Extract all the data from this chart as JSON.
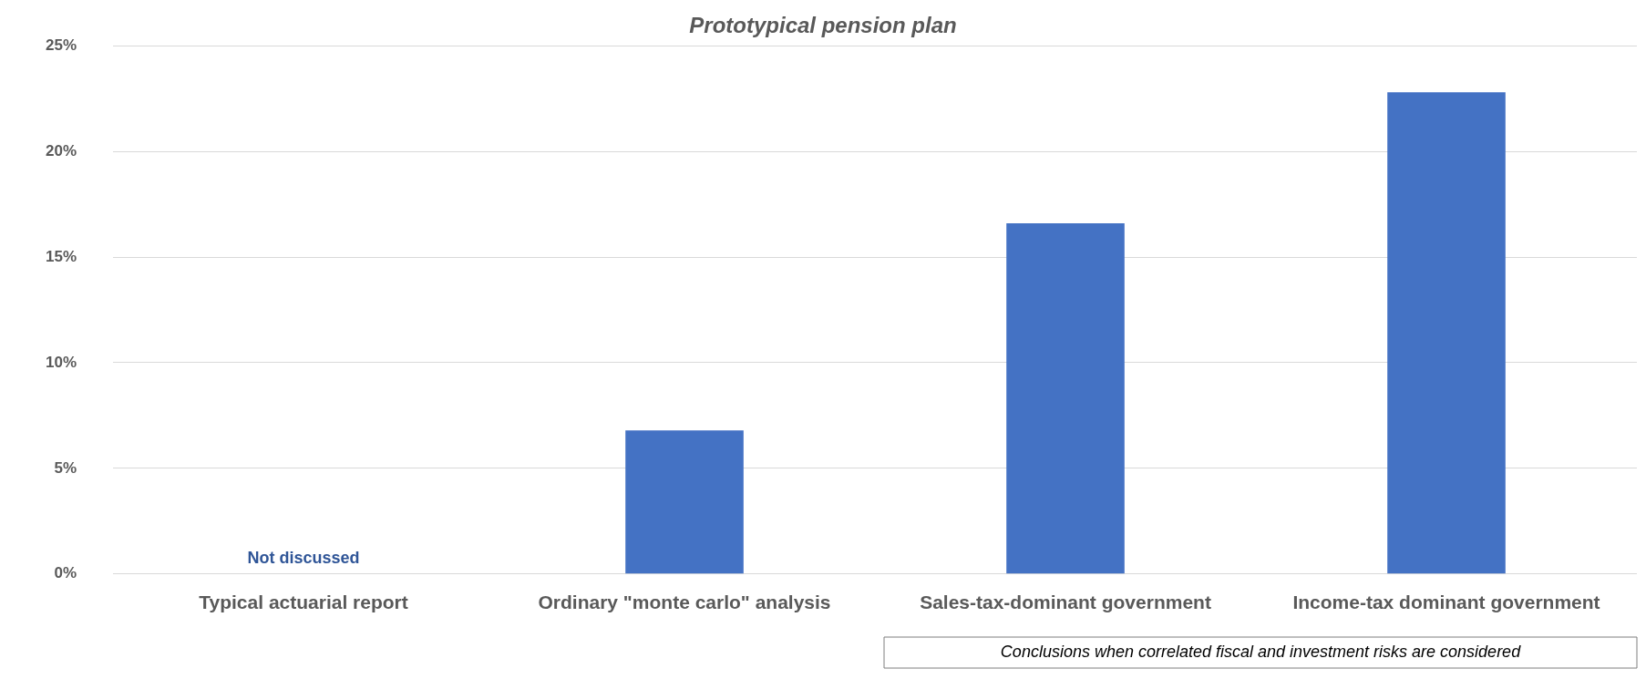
{
  "chart_data": {
    "type": "bar",
    "title": "Prototypical pension plan",
    "categories": [
      "Typical actuarial report",
      "Ordinary \"monte carlo\" analysis",
      "Sales-tax-dominant government",
      "Income-tax dominant government"
    ],
    "values": [
      null,
      6.8,
      16.6,
      22.8
    ],
    "color": "#4472c4",
    "ylim": [
      0,
      25
    ],
    "yticks": [
      {
        "value": 0,
        "label": "0%"
      },
      {
        "value": 5,
        "label": "5%"
      },
      {
        "value": 10,
        "label": "10%"
      },
      {
        "value": 15,
        "label": "15%"
      },
      {
        "value": 20,
        "label": "20%"
      },
      {
        "value": 25,
        "label": "25%"
      }
    ],
    "grid": "y",
    "legend": false,
    "annotations": [
      "Not discussed",
      "Conclusions when correlated fiscal and investment risks are considered"
    ]
  }
}
